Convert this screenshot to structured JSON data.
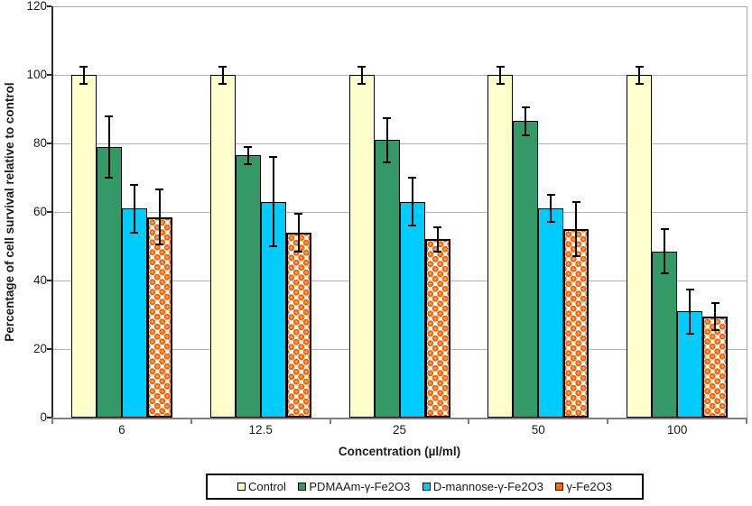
{
  "chart_data": {
    "type": "bar",
    "title": "",
    "xlabel": "Concentration (µl/ml)",
    "ylabel": "Percentage of cell survival relative to control",
    "categories": [
      "6",
      "12.5",
      "25",
      "50",
      "100"
    ],
    "ylim": [
      0,
      120
    ],
    "ytick_step": 20,
    "grid": true,
    "legend_position": "bottom",
    "error_bars": true,
    "series": [
      {
        "name": "Control",
        "color": "#FFFFCC",
        "pattern": "solid",
        "values": [
          100,
          100,
          100,
          100,
          100
        ],
        "errors": [
          2.5,
          2.5,
          2.5,
          2.5,
          2.5
        ]
      },
      {
        "name": "PDMAAm-γ-Fe2O3",
        "color": "#339966",
        "pattern": "solid",
        "values": [
          79,
          76.5,
          81,
          86.5,
          48.5
        ],
        "errors": [
          9,
          2.5,
          6.5,
          4,
          6.5
        ]
      },
      {
        "name": "D-mannose-γ-Fe2O3",
        "color": "#00CCFF",
        "pattern": "solid",
        "values": [
          61,
          63,
          63,
          61,
          31
        ],
        "errors": [
          7,
          13,
          7,
          4,
          6.5
        ]
      },
      {
        "name": "γ-Fe2O3",
        "color": "#FF6600",
        "pattern": "balls",
        "values": [
          58.5,
          54,
          52,
          55,
          29.5
        ],
        "errors": [
          8,
          5.5,
          3.5,
          8,
          4
        ]
      }
    ],
    "style_colors": {
      "plot_border": "#a8a8a8",
      "gridline": "#b2b2b2",
      "y_axis_line": "#2b2b2b",
      "x_axis_line": "#7f7f7f",
      "bar_border": "#000000",
      "error_bar": "#000000",
      "background": "#ffffff"
    }
  }
}
